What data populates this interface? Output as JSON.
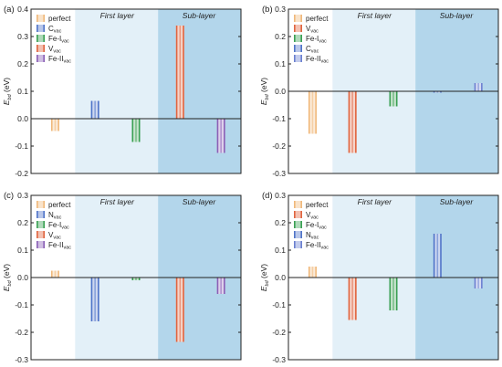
{
  "figure": {
    "region_labels": {
      "first": "First layer",
      "sub": "Sub-layer"
    },
    "ylabel": {
      "main": "E",
      "sub": "bd",
      "unit": " (eV)"
    }
  },
  "chart_data": [
    {
      "type": "bar",
      "panel": "(a)",
      "ylim": [
        -0.2,
        0.4
      ],
      "yticks": [
        -0.2,
        -0.1,
        0.0,
        0.1,
        0.2,
        0.3,
        0.4
      ],
      "ytick_labels": [
        "-0.2",
        "-0.1",
        "0.0",
        "0.1",
        "0.2",
        "0.3",
        "0.4"
      ],
      "legend": [
        {
          "main": "perfect",
          "sub": ""
        },
        {
          "main": "C",
          "sub": "vac"
        },
        {
          "main": "Fe-I",
          "sub": "vac"
        },
        {
          "main": "V",
          "sub": "vac"
        },
        {
          "main": "Fe-II",
          "sub": "vac"
        }
      ],
      "series": [
        {
          "legend_index": 0,
          "value": -0.045,
          "color": "#f0b87a"
        },
        {
          "legend_index": 1,
          "value": 0.065,
          "color": "#4f74c8"
        },
        {
          "legend_index": 2,
          "value": -0.085,
          "color": "#3aa053"
        },
        {
          "legend_index": 3,
          "value": 0.34,
          "color": "#e0643f"
        },
        {
          "legend_index": 4,
          "value": -0.125,
          "color": "#8a5fb6"
        }
      ]
    },
    {
      "type": "bar",
      "panel": "(b)",
      "ylim": [
        -0.3,
        0.3
      ],
      "yticks": [
        -0.3,
        -0.2,
        -0.1,
        0.0,
        0.1,
        0.2,
        0.3
      ],
      "ytick_labels": [
        "-0.3",
        "-0.2",
        "-0.1",
        "0.0",
        "0.1",
        "0.2",
        "0.3"
      ],
      "legend": [
        {
          "main": "perfect",
          "sub": ""
        },
        {
          "main": "V",
          "sub": "vac"
        },
        {
          "main": "Fe-I",
          "sub": "vac"
        },
        {
          "main": "C",
          "sub": "vac"
        },
        {
          "main": "Fe-II",
          "sub": "vac"
        }
      ],
      "series": [
        {
          "legend_index": 0,
          "value": -0.155,
          "color": "#f0b87a"
        },
        {
          "legend_index": 1,
          "value": -0.225,
          "color": "#e0643f"
        },
        {
          "legend_index": 2,
          "value": -0.055,
          "color": "#3aa053"
        },
        {
          "legend_index": 3,
          "value": -0.005,
          "color": "#4f74c8"
        },
        {
          "legend_index": 4,
          "value": 0.03,
          "color": "#6a7fd0"
        }
      ]
    },
    {
      "type": "bar",
      "panel": "(c)",
      "ylim": [
        -0.3,
        0.3
      ],
      "yticks": [
        -0.3,
        -0.2,
        -0.1,
        0.0,
        0.1,
        0.2,
        0.3
      ],
      "ytick_labels": [
        "-0.3",
        "-0.2",
        "-0.1",
        "0.0",
        "0.1",
        "0.2",
        "0.3"
      ],
      "legend": [
        {
          "main": "perfect",
          "sub": ""
        },
        {
          "main": "N",
          "sub": "vac"
        },
        {
          "main": "Fe-I",
          "sub": "vac"
        },
        {
          "main": "V",
          "sub": "vac"
        },
        {
          "main": "Fe-II",
          "sub": "vac"
        }
      ],
      "series": [
        {
          "legend_index": 0,
          "value": 0.025,
          "color": "#f0b87a"
        },
        {
          "legend_index": 1,
          "value": -0.16,
          "color": "#4f74c8"
        },
        {
          "legend_index": 2,
          "value": -0.01,
          "color": "#3aa053"
        },
        {
          "legend_index": 3,
          "value": -0.235,
          "color": "#e0643f"
        },
        {
          "legend_index": 4,
          "value": -0.06,
          "color": "#8a5fb6"
        }
      ]
    },
    {
      "type": "bar",
      "panel": "(d)",
      "ylim": [
        -0.3,
        0.3
      ],
      "yticks": [
        -0.3,
        -0.2,
        -0.1,
        0.0,
        0.1,
        0.2,
        0.3
      ],
      "ytick_labels": [
        "-0.3",
        "-0.2",
        "-0.1",
        "0.0",
        "0.1",
        "0.2",
        "0.3"
      ],
      "legend": [
        {
          "main": "perfect",
          "sub": ""
        },
        {
          "main": "V",
          "sub": "vac"
        },
        {
          "main": "Fe-I",
          "sub": "vac"
        },
        {
          "main": "N",
          "sub": "vac"
        },
        {
          "main": "Fe-II",
          "sub": "vac"
        }
      ],
      "series": [
        {
          "legend_index": 0,
          "value": 0.04,
          "color": "#f0b87a"
        },
        {
          "legend_index": 1,
          "value": -0.155,
          "color": "#e0643f"
        },
        {
          "legend_index": 2,
          "value": -0.12,
          "color": "#3aa053"
        },
        {
          "legend_index": 3,
          "value": 0.16,
          "color": "#4f74c8"
        },
        {
          "legend_index": 4,
          "value": -0.04,
          "color": "#6a7fd0"
        }
      ]
    }
  ]
}
